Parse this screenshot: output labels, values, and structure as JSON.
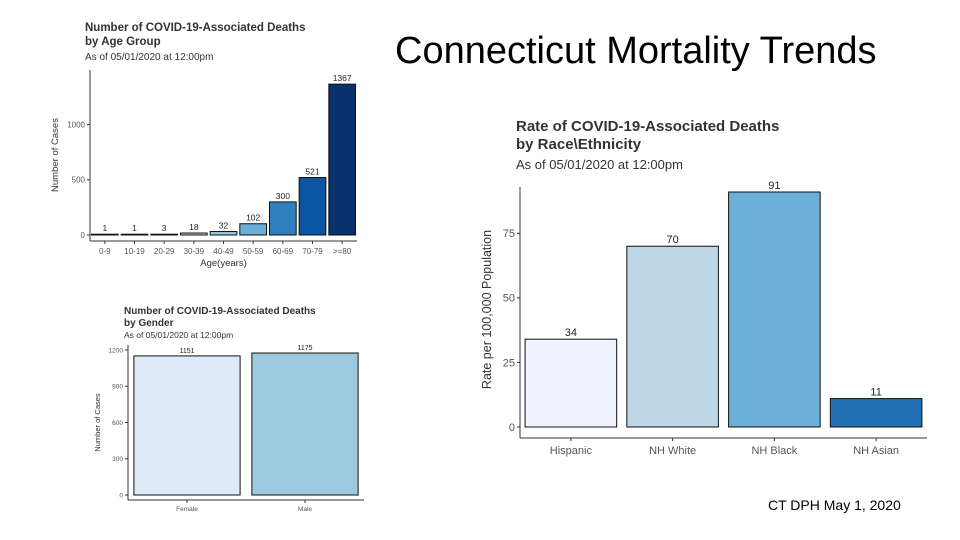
{
  "page": {
    "title": "Connecticut Mortality Trends",
    "footer": "CT DPH May 1, 2020"
  },
  "chart_data": [
    {
      "id": "age",
      "type": "bar",
      "title": "Number of COVID-19-Associated Deaths",
      "title2": "by Age Group",
      "subtitle": "As of 05/01/2020 at 12:00pm",
      "xlabel": "Age(years)",
      "ylabel": "Number of Cases",
      "categories": [
        "0-9",
        "10-19",
        "20-29",
        "30-39",
        "40-49",
        "50-59",
        "60-69",
        "70-79",
        ">=80"
      ],
      "values": [
        1,
        1,
        3,
        18,
        32,
        102,
        300,
        521,
        1367
      ],
      "value_labels": [
        "1",
        "1",
        "3",
        "18",
        "32",
        "102",
        "300",
        "521",
        "1367"
      ],
      "ylim": [
        0,
        1450
      ],
      "yticks": [
        0,
        500,
        1000
      ],
      "colors": [
        "#f7fbff",
        "#eaf2fb",
        "#d6e6f4",
        "#bad6eb",
        "#94c4df",
        "#6baed6",
        "#2f7fbf",
        "#0b55a3",
        "#08306b"
      ],
      "grid": false,
      "legend": "none"
    },
    {
      "id": "gender",
      "type": "bar",
      "title": "Number of COVID-19-Associated Deaths",
      "title2": "by Gender",
      "subtitle": "As of 05/01/2020 at 12:00pm",
      "xlabel": "",
      "ylabel": "Number of Cases",
      "categories": [
        "Female",
        "Male"
      ],
      "values": [
        1151,
        1175
      ],
      "value_labels": [
        "1151",
        "1175"
      ],
      "ylim": [
        0,
        1200
      ],
      "yticks": [
        0,
        300,
        600,
        900,
        1200
      ],
      "colors": [
        "#deebf7",
        "#9ecae1"
      ],
      "grid": false,
      "legend": "none"
    },
    {
      "id": "race",
      "type": "bar",
      "title": "Rate of COVID-19-Associated Deaths",
      "title2": "by Race\\Ethnicity",
      "subtitle": "As of 05/01/2020 at 12:00pm",
      "xlabel": "",
      "ylabel": "Rate per 100,000 Population",
      "categories": [
        "Hispanic",
        "NH White",
        "NH Black",
        "NH Asian"
      ],
      "values": [
        34,
        70,
        91,
        11
      ],
      "value_labels": [
        "34",
        "70",
        "91",
        "11"
      ],
      "ylim": [
        0,
        91
      ],
      "yticks": [
        0,
        25,
        50,
        75
      ],
      "ytick_labels": [
        "0",
        "25",
        "50",
        "75"
      ],
      "colors": [
        "#eff3ff",
        "#bdd7e7",
        "#6baed6",
        "#2171b5"
      ],
      "grid": false,
      "legend": "none"
    }
  ]
}
